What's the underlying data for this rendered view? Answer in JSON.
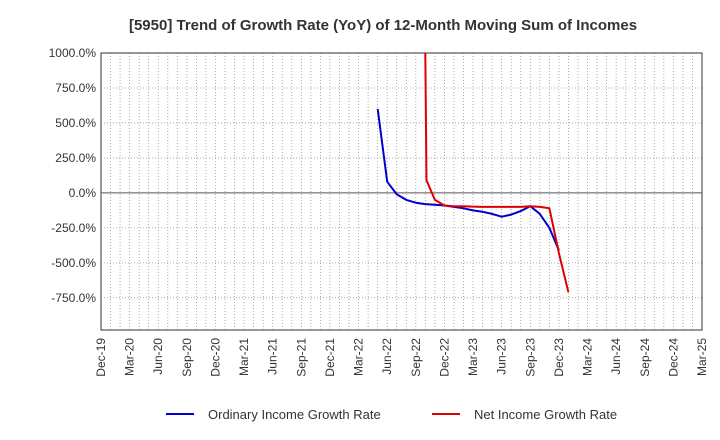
{
  "chart_data": {
    "type": "line",
    "title": "[5950]  Trend of Growth Rate (YoY) of 12-Month Moving Sum of Incomes",
    "xlabel": "",
    "ylabel": "",
    "x_ticks": [
      "Dec-19",
      "Mar-20",
      "Jun-20",
      "Sep-20",
      "Dec-20",
      "Mar-21",
      "Jun-21",
      "Sep-21",
      "Dec-21",
      "Mar-22",
      "Jun-22",
      "Sep-22",
      "Dec-22",
      "Mar-23",
      "Jun-23",
      "Sep-23",
      "Dec-23",
      "Mar-24",
      "Jun-24",
      "Sep-24",
      "Dec-24",
      "Mar-25"
    ],
    "y_ticks": [
      "1000.0%",
      "750.0%",
      "500.0%",
      "250.0%",
      "0.0%",
      "-250.0%",
      "-500.0%",
      "-750.0%"
    ],
    "y_tick_values": [
      1000,
      750,
      500,
      250,
      0,
      -250,
      -500,
      -750
    ],
    "ylim": [
      -980,
      1000
    ],
    "grid": true,
    "legend_position": "bottom",
    "series": [
      {
        "name": "Ordinary Income Growth Rate",
        "color": "#0000cc",
        "x": [
          "May-22",
          "Jun-22",
          "Jul-22",
          "Aug-22",
          "Sep-22",
          "Oct-22",
          "Nov-22",
          "Dec-22",
          "Jan-23",
          "Feb-23",
          "Mar-23",
          "Apr-23",
          "May-23",
          "Jun-23",
          "Jul-23",
          "Aug-23",
          "Sep-23",
          "Oct-23",
          "Nov-23",
          "Dec-23"
        ],
        "values": [
          600,
          80,
          -10,
          -50,
          -70,
          -80,
          -85,
          -90,
          -100,
          -110,
          -125,
          -135,
          -150,
          -170,
          -155,
          -130,
          -95,
          -150,
          -250,
          -410
        ]
      },
      {
        "name": "Net Income Growth Rate",
        "color": "#dd0000",
        "x": [
          "Oct-22",
          "Oct-22",
          "Nov-22",
          "Dec-22",
          "Jan-23",
          "Feb-23",
          "Mar-23",
          "Apr-23",
          "May-23",
          "Jun-23",
          "Jul-23",
          "Aug-23",
          "Sep-23",
          "Oct-23",
          "Nov-23",
          "Dec-23",
          "Jan-24"
        ],
        "values": [
          1000,
          90,
          -50,
          -90,
          -95,
          -95,
          -98,
          -100,
          -100,
          -100,
          -100,
          -100,
          -95,
          -100,
          -110,
          -430,
          -710
        ]
      }
    ]
  }
}
